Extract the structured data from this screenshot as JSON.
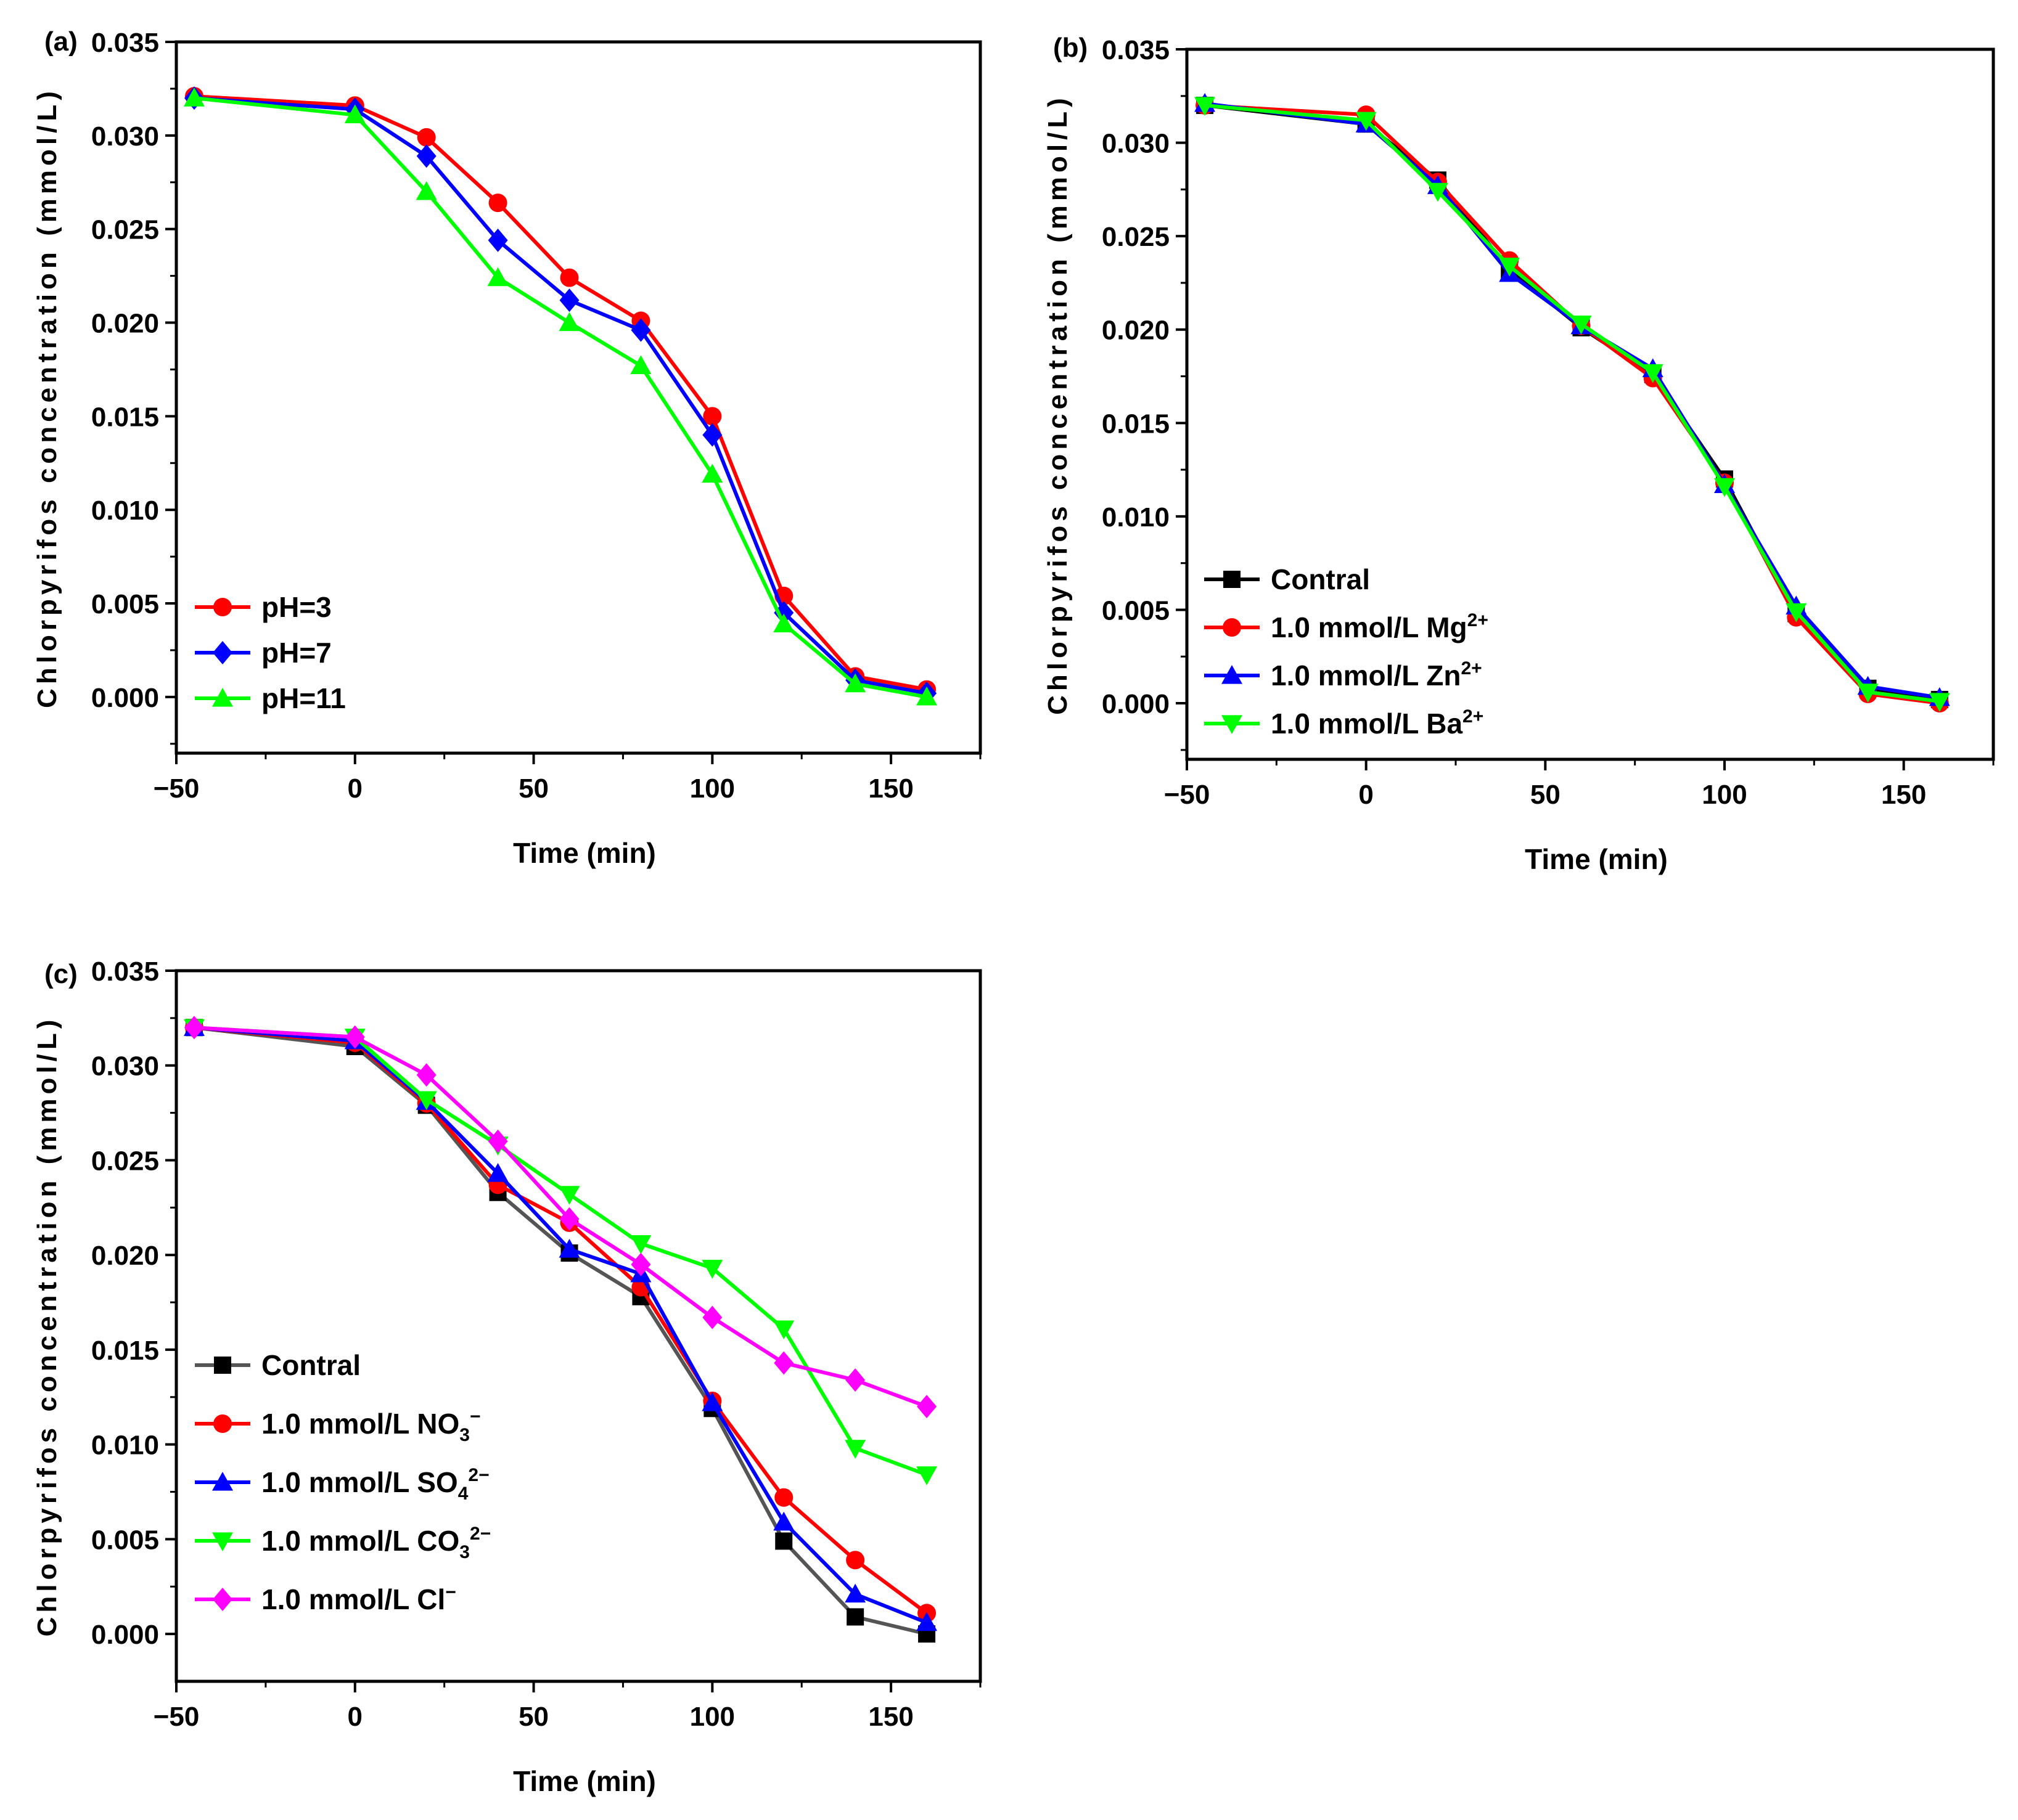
{
  "chart_data": [
    {
      "panel": "(a)",
      "type": "line",
      "xlabel": "Time (min)",
      "ylabel": "Chlorpyrifos concentration (mmol/L)",
      "xlim": [
        -50,
        175
      ],
      "ylim": [
        -0.003,
        0.035
      ],
      "xticks": [
        -50,
        0,
        50,
        100,
        150
      ],
      "xtick_labels": [
        "−50",
        "0",
        "50",
        "100",
        "150"
      ],
      "yticks": [
        0,
        0.005,
        0.01,
        0.015,
        0.02,
        0.025,
        0.03,
        0.035
      ],
      "ytick_labels": [
        "0.000",
        "0.005",
        "0.010",
        "0.015",
        "0.020",
        "0.025",
        "0.030",
        "0.035"
      ],
      "x": [
        -45,
        0,
        20,
        40,
        60,
        80,
        100,
        120,
        140,
        160
      ],
      "legend_position": "bottom-left",
      "series": [
        {
          "name": "pH=3",
          "label": [
            {
              "t": "pH=3"
            }
          ],
          "color": "#ff0000",
          "marker": "circle",
          "values": [
            0.0321,
            0.0316,
            0.0299,
            0.0264,
            0.0224,
            0.0201,
            0.015,
            0.0054,
            0.0011,
            0.0004
          ]
        },
        {
          "name": "pH=7",
          "label": [
            {
              "t": "pH=7"
            }
          ],
          "color": "#0000ff",
          "marker": "diamond",
          "values": [
            0.032,
            0.0314,
            0.0289,
            0.0244,
            0.0212,
            0.0196,
            0.014,
            0.0045,
            0.0009,
            0.0002
          ]
        },
        {
          "name": "pH=11",
          "label": [
            {
              "t": "pH=11"
            }
          ],
          "color": "#00ff00",
          "marker": "triangle-up",
          "values": [
            0.032,
            0.0311,
            0.027,
            0.0224,
            0.02,
            0.0177,
            0.0119,
            0.0039,
            0.0007,
            0.0
          ]
        }
      ]
    },
    {
      "panel": "(b)",
      "type": "line",
      "xlabel": "Time (min)",
      "ylabel": "Chlorpyrifos concentration (mmol/L)",
      "xlim": [
        -50,
        175
      ],
      "ylim": [
        -0.003,
        0.035
      ],
      "xticks": [
        -50,
        0,
        50,
        100,
        150
      ],
      "xtick_labels": [
        "−50",
        "0",
        "50",
        "100",
        "150"
      ],
      "yticks": [
        0,
        0.005,
        0.01,
        0.015,
        0.02,
        0.025,
        0.03,
        0.035
      ],
      "ytick_labels": [
        "0.000",
        "0.005",
        "0.010",
        "0.015",
        "0.020",
        "0.025",
        "0.030",
        "0.035"
      ],
      "x": [
        -45,
        0,
        20,
        40,
        60,
        80,
        100,
        120,
        140,
        160
      ],
      "legend_position": "bottom-left",
      "series": [
        {
          "name": "Contral",
          "label": [
            {
              "t": "Contral"
            }
          ],
          "color": "#000000",
          "marker": "square",
          "values": [
            0.032,
            0.031,
            0.028,
            0.0232,
            0.0201,
            0.0176,
            0.012,
            0.0048,
            0.0008,
            0.0002
          ]
        },
        {
          "name": "1.0 mmol/L Mg2+",
          "label": [
            {
              "t": "1.0 mmol/L Mg"
            },
            {
              "t": "2+",
              "s": "sup"
            }
          ],
          "color": "#ff0000",
          "marker": "circle",
          "values": [
            0.032,
            0.0315,
            0.0279,
            0.0237,
            0.0202,
            0.0174,
            0.0118,
            0.0046,
            0.0005,
            0.0
          ]
        },
        {
          "name": "1.0 mmol/L Zn2+",
          "label": [
            {
              "t": "1.0 mmol/L Zn"
            },
            {
              "t": "2+",
              "s": "sup"
            }
          ],
          "color": "#0000ff",
          "marker": "triangle-up",
          "values": [
            0.0321,
            0.031,
            0.0277,
            0.023,
            0.0202,
            0.0179,
            0.0117,
            0.0052,
            0.0009,
            0.0003
          ]
        },
        {
          "name": "1.0 mmol/L Ba2+",
          "label": [
            {
              "t": "1.0 mmol/L Ba"
            },
            {
              "t": "2+",
              "s": "sup"
            }
          ],
          "color": "#00ff00",
          "marker": "triangle-down",
          "values": [
            0.032,
            0.0312,
            0.0274,
            0.0234,
            0.0203,
            0.0177,
            0.0116,
            0.0049,
            0.0006,
            0.0001
          ]
        }
      ]
    },
    {
      "panel": "(c)",
      "type": "line",
      "xlabel": "Time (min)",
      "ylabel": "Chlorpyrifos concentration (mmol/L)",
      "xlim": [
        -50,
        175
      ],
      "ylim": [
        -0.0025,
        0.035
      ],
      "xticks": [
        -50,
        0,
        50,
        100,
        150
      ],
      "xtick_labels": [
        "−50",
        "0",
        "50",
        "100",
        "150"
      ],
      "yticks": [
        0,
        0.005,
        0.01,
        0.015,
        0.02,
        0.025,
        0.03,
        0.035
      ],
      "ytick_labels": [
        "0.000",
        "0.005",
        "0.010",
        "0.015",
        "0.020",
        "0.025",
        "0.030",
        "0.035"
      ],
      "x": [
        -45,
        0,
        20,
        40,
        60,
        80,
        100,
        120,
        140,
        160
      ],
      "legend_position": "bottom-left",
      "series": [
        {
          "name": "Contral",
          "label": [
            {
              "t": "Contral"
            }
          ],
          "color": "#555555",
          "marker": "square",
          "values": [
            0.032,
            0.031,
            0.0279,
            0.0233,
            0.0201,
            0.0178,
            0.0119,
            0.0049,
            0.0009,
            0.0
          ]
        },
        {
          "name": "1.0 mmol/L NO3−",
          "label": [
            {
              "t": "1.0 mmol/L NO"
            },
            {
              "t": "3",
              "s": "sub"
            },
            {
              "t": "−",
              "s": "sup"
            }
          ],
          "color": "#ff0000",
          "marker": "circle",
          "values": [
            0.032,
            0.0312,
            0.028,
            0.0237,
            0.0217,
            0.0183,
            0.0123,
            0.0072,
            0.0039,
            0.0011
          ]
        },
        {
          "name": "1.0 mmol/L SO42−",
          "label": [
            {
              "t": "1.0 mmol/L SO"
            },
            {
              "t": "4",
              "s": "sub"
            },
            {
              "t": "2−",
              "s": "sup"
            }
          ],
          "color": "#0000ff",
          "marker": "triangle-up",
          "values": [
            0.032,
            0.0313,
            0.0281,
            0.0243,
            0.0203,
            0.019,
            0.0122,
            0.0059,
            0.0021,
            0.0006
          ]
        },
        {
          "name": "1.0 mmol/L CO32−",
          "label": [
            {
              "t": "1.0 mmol/L CO"
            },
            {
              "t": "3",
              "s": "sub"
            },
            {
              "t": "2−",
              "s": "sup"
            }
          ],
          "color": "#00ff00",
          "marker": "triangle-down",
          "values": [
            0.032,
            0.0315,
            0.0282,
            0.0258,
            0.0232,
            0.0206,
            0.0193,
            0.0161,
            0.0098,
            0.0084
          ]
        },
        {
          "name": "1.0 mmol/L Cl−",
          "label": [
            {
              "t": "1.0 mmol/L Cl"
            },
            {
              "t": "−",
              "s": "sup"
            }
          ],
          "color": "#ff00ff",
          "marker": "diamond",
          "values": [
            0.032,
            0.0315,
            0.0295,
            0.026,
            0.0219,
            0.0195,
            0.0167,
            0.0143,
            0.0134,
            0.012
          ]
        }
      ]
    }
  ]
}
